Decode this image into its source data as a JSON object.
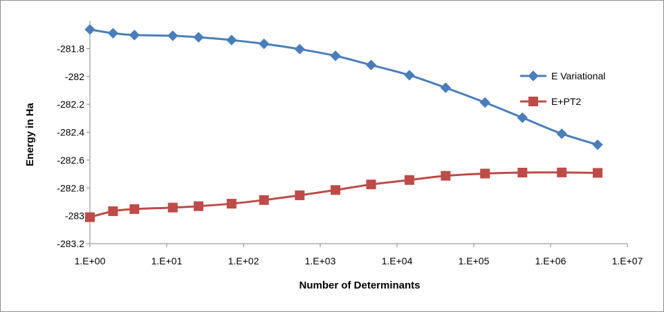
{
  "chart_data": {
    "type": "line",
    "title": "",
    "xlabel": "Number of Determinants",
    "ylabel": "Energy in Ha",
    "x_scale": "log",
    "xlim": [
      1,
      10000000
    ],
    "ylim": [
      -283.2,
      -281.6
    ],
    "x_tick_labels": [
      "1.E+00",
      "1.E+01",
      "1.E+02",
      "1.E+03",
      "1.E+04",
      "1.E+05",
      "1.E+06",
      "1.E+07"
    ],
    "y_tick_labels": [
      "-281.8",
      "-282",
      "-282.2",
      "-282.4",
      "-282.6",
      "-282.8",
      "-283",
      "-283.2"
    ],
    "y_ticks": [
      -281.8,
      -282,
      -282.2,
      -282.4,
      -282.6,
      -282.8,
      -283,
      -283.2
    ],
    "grid": false,
    "legend_position": "right",
    "series": [
      {
        "name": "E Variational",
        "color": "#4a7ebb",
        "marker": "diamond",
        "x": [
          1,
          2,
          3.8,
          12,
          26,
          70,
          185,
          540,
          1580,
          4600,
          14500,
          43000,
          140000,
          430000,
          1400000,
          4100000
        ],
        "y": [
          -281.663,
          -281.69,
          -281.703,
          -281.708,
          -281.719,
          -281.739,
          -281.766,
          -281.804,
          -281.852,
          -281.918,
          -281.991,
          -282.081,
          -282.187,
          -282.296,
          -282.411,
          -282.49
        ]
      },
      {
        "name": "E+PT2",
        "color": "#be4b48",
        "marker": "square",
        "x": [
          1,
          2,
          3.8,
          12,
          26,
          70,
          185,
          540,
          1580,
          4600,
          14500,
          43000,
          140000,
          430000,
          1400000,
          4100000
        ],
        "y": [
          -283.01,
          -282.967,
          -282.952,
          -282.941,
          -282.931,
          -282.913,
          -282.887,
          -282.853,
          -282.815,
          -282.775,
          -282.743,
          -282.713,
          -282.697,
          -282.69,
          -282.689,
          -282.692
        ]
      }
    ]
  }
}
